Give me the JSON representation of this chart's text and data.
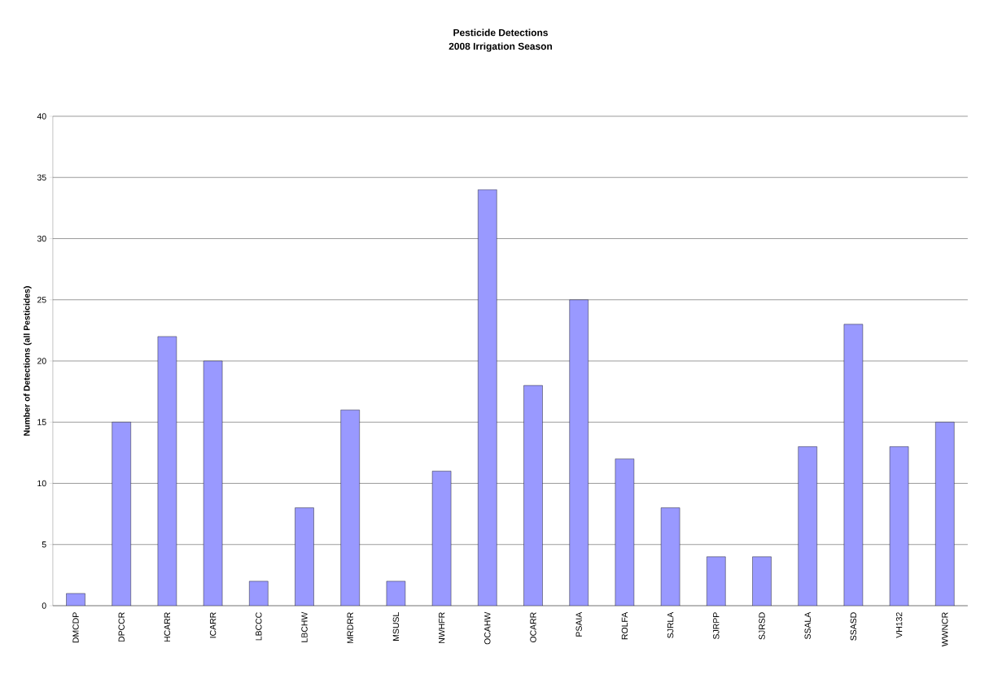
{
  "chart_data": {
    "type": "bar",
    "title": "Pesticide Detections",
    "subtitle": "2008 Irrigation Season",
    "ylabel": "Number of Detections (all Pesticides)",
    "categories": [
      "DMCDP",
      "DPCCR",
      "HCARR",
      "ICARR",
      "LBCCC",
      "LBCHW",
      "MRDRR",
      "MSUSL",
      "NWHFR",
      "OCAHW",
      "OCARR",
      "PSAIA",
      "ROLFA",
      "SJRLA",
      "SJRPP",
      "SJRSD",
      "SSALA",
      "SSASD",
      "VH132",
      "WWNCR"
    ],
    "values": [
      1,
      15,
      22,
      20,
      2,
      8,
      16,
      2,
      11,
      34,
      18,
      25,
      12,
      8,
      4,
      4,
      13,
      23,
      13,
      15
    ],
    "color": "#9999ff",
    "ylim": [
      0,
      40
    ],
    "yticks": [
      0,
      5,
      10,
      15,
      20,
      25,
      30,
      35,
      40
    ],
    "grid": "y"
  }
}
